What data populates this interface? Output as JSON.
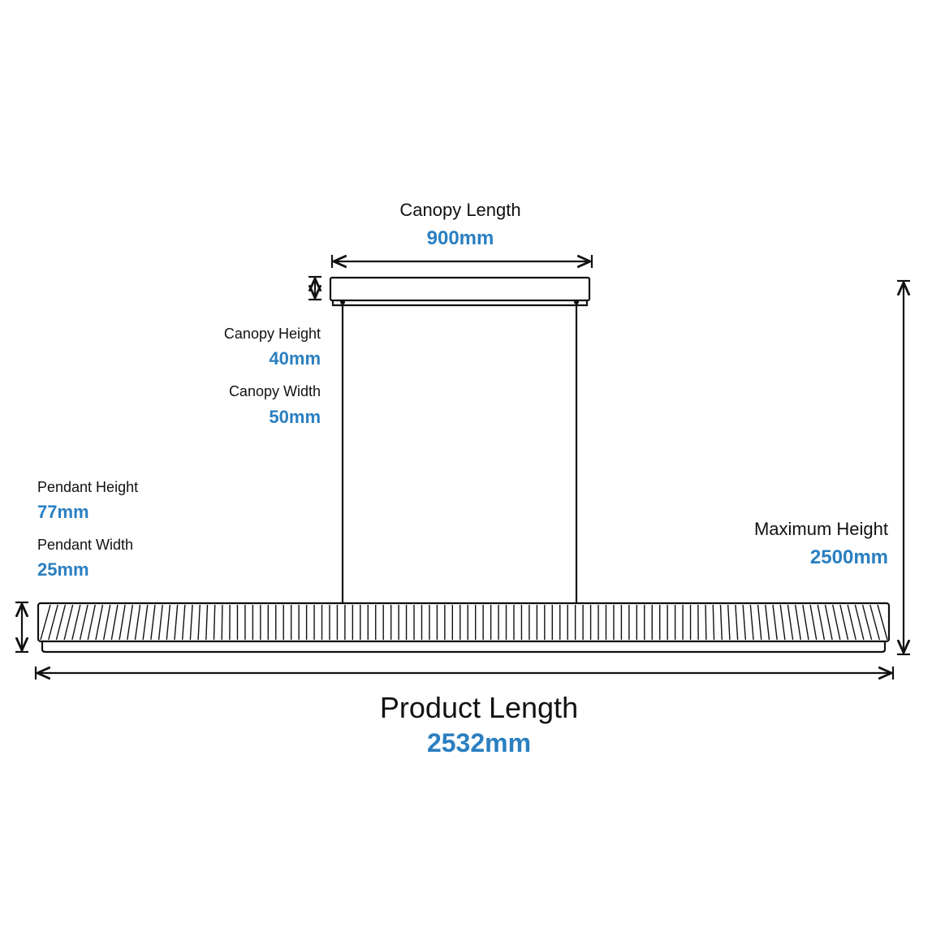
{
  "canopy_length": {
    "label": "Canopy Length",
    "value": "900mm"
  },
  "canopy_height": {
    "label": "Canopy Height",
    "value": "40mm"
  },
  "canopy_width": {
    "label": "Canopy Width",
    "value": "50mm"
  },
  "pendant_height": {
    "label": "Pendant Height",
    "value": "77mm"
  },
  "pendant_width": {
    "label": "Pendant Width",
    "value": "25mm"
  },
  "maximum_height": {
    "label": "Maximum Height",
    "value": "2500mm"
  },
  "product_length": {
    "label": "Product Length",
    "value": "2532mm"
  }
}
